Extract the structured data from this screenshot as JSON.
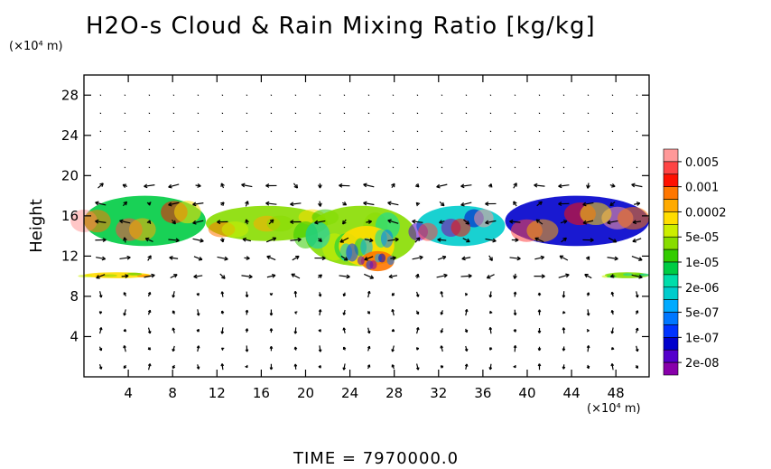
{
  "chart_data": {
    "type": "heatmap",
    "title": "H2O-s Cloud & Rain Mixing Ratio [kg/kg]",
    "ylabel": "Height",
    "y_unit": "(×10⁴ m)",
    "x_unit": "(×10⁴ m)",
    "xlim": [
      0,
      51
    ],
    "ylim": [
      0,
      30
    ],
    "x_ticks": [
      4,
      8,
      12,
      16,
      20,
      24,
      28,
      32,
      36,
      40,
      44,
      48
    ],
    "y_ticks": [
      4,
      8,
      12,
      16,
      20,
      24,
      28
    ],
    "colorbar": {
      "labels": [
        "0.005",
        "0.001",
        "0.0002",
        "5e-05",
        "1e-05",
        "2e-06",
        "5e-07",
        "1e-07",
        "2e-08"
      ],
      "colors": [
        "#ff9999",
        "#ff4444",
        "#ff1100",
        "#ff7700",
        "#ffaa00",
        "#ffdd00",
        "#ccee00",
        "#88dd00",
        "#33cc00",
        "#00cc44",
        "#00ddaa",
        "#00cccc",
        "#00aaff",
        "#0077ff",
        "#0033ff",
        "#0000cc",
        "#5500cc",
        "#8800aa"
      ]
    },
    "cloud_regions": [
      {
        "x0": 0,
        "x1": 11,
        "y0": 13,
        "y1": 18,
        "level": "1e-05"
      },
      {
        "x0": 11,
        "x1": 22,
        "y0": 13.5,
        "y1": 17,
        "level": "5e-05"
      },
      {
        "x0": 20,
        "x1": 30,
        "y0": 11,
        "y1": 17,
        "level": "5e-05"
      },
      {
        "x0": 23,
        "x1": 28,
        "y0": 11,
        "y1": 15,
        "level": "0.0002"
      },
      {
        "x0": 25,
        "x1": 28,
        "y0": 10.5,
        "y1": 12.5,
        "level": "0.001"
      },
      {
        "x0": 30,
        "x1": 38,
        "y0": 13,
        "y1": 17,
        "level": "2e-06"
      },
      {
        "x0": 38,
        "x1": 51,
        "y0": 13,
        "y1": 18,
        "level": "1e-07"
      },
      {
        "x0": 0,
        "x1": 6,
        "y0": 9.8,
        "y1": 10.4,
        "level": "0.0002"
      },
      {
        "x0": 47,
        "x1": 51,
        "y0": 9.8,
        "y1": 10.4,
        "level": "5e-05"
      }
    ],
    "wind_vectors": "shown",
    "time_label": "TIME  =  7970000.0"
  }
}
